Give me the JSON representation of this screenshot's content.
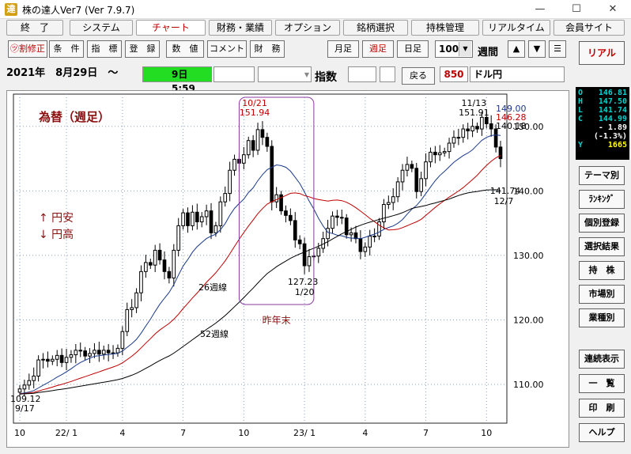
{
  "window": {
    "title": "株の達人Ver7 (Ver 7.9.7)",
    "icon_glyph": "達",
    "minimize": "—",
    "maximize": "☐",
    "close": "✕"
  },
  "menu": [
    "終　了",
    "システム",
    "チャート",
    "財務・業績",
    "オプション",
    "銘柄選択",
    "持株管理",
    "リアルタイム",
    "会員サイト"
  ],
  "toolbar": {
    "left": [
      "㋡割修正",
      "条　件",
      "指　標",
      "登　録",
      "数　値",
      "コメント",
      "財　務"
    ],
    "period": [
      "月足",
      "週足",
      "日足"
    ],
    "count": "100",
    "count_label": "週間",
    "up": "▲",
    "down": "▼",
    "menu": "☰"
  },
  "info": {
    "date": "2021年　8月29日　～",
    "period": "9日　　5:59",
    "indicator": "指数",
    "back": "戻る",
    "code": "850",
    "name": "ドル円"
  },
  "right": {
    "real": "リアル",
    "ohlc": [
      {
        "k": "O",
        "v": "146.81"
      },
      {
        "k": "H",
        "v": "147.50"
      },
      {
        "k": "L",
        "v": "141.74"
      },
      {
        "k": "C",
        "v": "144.99"
      },
      {
        "k": "",
        "v": "- 1.89"
      },
      {
        "k": "",
        "v": "(-1.3%)"
      },
      {
        "k": "Y",
        "v": "1665"
      }
    ],
    "buttons1": [
      "テーマ別",
      "ﾗﾝｷﾝｸﾞ",
      "個別登録",
      "選択結果",
      "持　株",
      "市場別",
      "業種別"
    ],
    "buttons2": [
      "連続表示",
      "一　覧",
      "印　刷",
      "ヘルプ"
    ]
  },
  "chart_data": {
    "type": "line",
    "subtype": "candlestick",
    "title": "為替（週足）",
    "legend_text": [
      "↑ 円安",
      "↓ 円高"
    ],
    "ylim": [
      104,
      155
    ],
    "yticks": [
      110,
      120,
      130,
      140,
      150
    ],
    "ytick_labels": [
      "110.00",
      "120.00",
      "130.00",
      "140.00",
      "150.00"
    ],
    "x_tick_labels": [
      {
        "i": 0,
        "label": "10"
      },
      {
        "i": 10,
        "label": "22/ 1"
      },
      {
        "i": 22,
        "label": "4"
      },
      {
        "i": 35,
        "label": "7"
      },
      {
        "i": 48,
        "label": "10"
      },
      {
        "i": 61,
        "label": "23/ 1"
      },
      {
        "i": 74,
        "label": "4"
      },
      {
        "i": 87,
        "label": "7"
      },
      {
        "i": 100,
        "label": "10"
      }
    ],
    "closes": [
      109.3,
      109.9,
      110.6,
      111.3,
      113.8,
      113.9,
      113.6,
      113.9,
      114.5,
      113.4,
      114.2,
      114.6,
      115.3,
      115.2,
      114.4,
      114.8,
      115.3,
      114.7,
      115.3,
      114.9,
      114.9,
      115.6,
      118.2,
      121.6,
      121.9,
      124.2,
      127.5,
      128.9,
      128.5,
      130.8,
      129.3,
      127.5,
      126.5,
      130.8,
      134.6,
      136.6,
      134.6,
      136.7,
      135.2,
      136.0,
      136.9,
      133.5,
      134.6,
      138.3,
      139.6,
      143.2,
      144.9,
      144.3,
      145.6,
      147.8,
      146.3,
      149.5,
      148.3,
      146.9,
      138.3,
      139.4,
      136.9,
      136.2,
      135.4,
      132.4,
      131.8,
      128.4,
      129.8,
      129.9,
      131.1,
      132.6,
      134.2,
      136.1,
      135.9,
      135.8,
      133.2,
      133.5,
      132.6,
      130.6,
      131.3,
      133.0,
      133.0,
      135.2,
      137.9,
      138.2,
      139.1,
      141.4,
      143.2,
      144.1,
      143.5,
      139.9,
      141.9,
      144.5,
      146.0,
      145.6,
      145.9,
      146.1,
      147.4,
      148.3,
      148.3,
      149.6,
      149.3,
      150.0,
      149.6,
      151.4,
      150.4,
      149.6,
      146.8,
      145.0
    ],
    "max_point": {
      "i": 51,
      "label": "10/21",
      "value": "151.94"
    },
    "min_point": {
      "i": 60,
      "label": "1/20",
      "value": "127.23"
    },
    "last_high_label": {
      "label": "11/13",
      "value": "151.91"
    },
    "last_low_label": {
      "label": "12/7",
      "value": "141.74"
    },
    "start_label": {
      "label": "9/17",
      "value": "109.12"
    },
    "ma_values": [
      {
        "value": "149.00",
        "color": "#1a3a8a"
      },
      {
        "value": "146.28",
        "color": "#c00000"
      },
      {
        "value": "140.18",
        "color": "#000000"
      }
    ],
    "ma_labels": [
      "26週線",
      "52週線"
    ],
    "annotation": "昨年末",
    "colors": {
      "ma13": "#1a3a8a",
      "ma26": "#c00000",
      "ma52": "#000000",
      "box": "#8a3aa0",
      "title": "#8a1010"
    }
  }
}
